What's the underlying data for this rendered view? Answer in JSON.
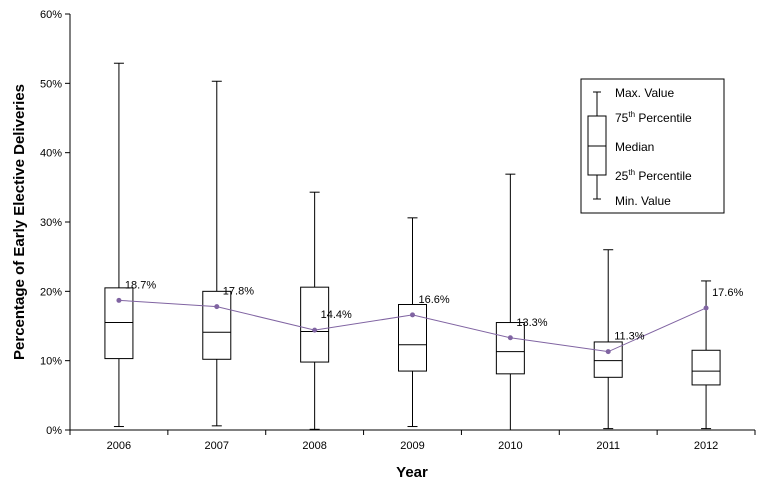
{
  "chart_data": {
    "type": "boxplot",
    "xlabel": "Year",
    "ylabel": "Percentage of Early Elective Deliveries",
    "ylim": [
      0,
      60
    ],
    "yticks": [
      0,
      10,
      20,
      30,
      40,
      50,
      60
    ],
    "ytick_labels": [
      "0%",
      "10%",
      "20%",
      "30%",
      "40%",
      "50%",
      "60%"
    ],
    "categories": [
      "2006",
      "2007",
      "2008",
      "2009",
      "2010",
      "2011",
      "2012"
    ],
    "boxes": [
      {
        "year": "2006",
        "min": 0.5,
        "q1": 10.3,
        "median": 15.5,
        "q3": 20.5,
        "max": 52.9
      },
      {
        "year": "2007",
        "min": 0.6,
        "q1": 10.2,
        "median": 14.1,
        "q3": 20.0,
        "max": 50.3
      },
      {
        "year": "2008",
        "min": 0.1,
        "q1": 9.8,
        "median": 14.2,
        "q3": 20.6,
        "max": 34.3
      },
      {
        "year": "2009",
        "min": 0.5,
        "q1": 8.5,
        "median": 12.3,
        "q3": 18.1,
        "max": 30.6
      },
      {
        "year": "2010",
        "min": 0.0,
        "q1": 8.1,
        "median": 11.3,
        "q3": 15.5,
        "max": 36.9
      },
      {
        "year": "2011",
        "min": 0.2,
        "q1": 7.6,
        "median": 10.0,
        "q3": 12.7,
        "max": 26.0
      },
      {
        "year": "2012",
        "min": 0.2,
        "q1": 6.5,
        "median": 8.5,
        "q3": 11.5,
        "max": 21.5
      }
    ],
    "mean_series": {
      "values": [
        18.7,
        17.8,
        14.4,
        16.6,
        13.3,
        11.3,
        17.6
      ],
      "labels": [
        "18.7%",
        "17.8%",
        "14.4%",
        "16.6%",
        "13.3%",
        "11.3%",
        "17.6%"
      ],
      "color": "#8064a2"
    },
    "legend": {
      "position": "top-right",
      "max_label": "Max. Value",
      "p75_label": "75",
      "p75_sup": "th",
      "p75_suffix": " Percentile",
      "median_label": "Median",
      "p25_label": "25",
      "p25_sup": "th",
      "p25_suffix": " Percentile",
      "min_label": "Min. Value"
    }
  }
}
